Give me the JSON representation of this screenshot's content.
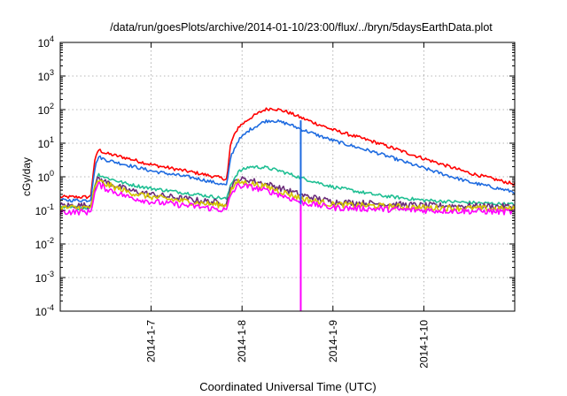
{
  "chart_data": {
    "type": "line",
    "title": "/data/run/goesPlots/archive/2014-01-10/23:00/flux/../bryn/5daysEarthData.plot",
    "xlabel": "Coordinated Universal Time (UTC)",
    "ylabel": "cGy/day",
    "yscale": "log",
    "ylim": [
      0.0001,
      10000
    ],
    "xlim": [
      "2014-01-06 00:00",
      "2014-01-11 00:00"
    ],
    "x_ticks": [
      "2014-1-7",
      "2014-1-8",
      "2014-1-9",
      "2014-1-10"
    ],
    "y_ticks": [
      {
        "base": "10",
        "exp": "-4",
        "value": 0.0001
      },
      {
        "base": "10",
        "exp": "-3",
        "value": 0.001
      },
      {
        "base": "10",
        "exp": "-2",
        "value": 0.01
      },
      {
        "base": "10",
        "exp": "-1",
        "value": 0.1
      },
      {
        "base": "10",
        "exp": "0",
        "value": 1
      },
      {
        "base": "10",
        "exp": "1",
        "value": 10
      },
      {
        "base": "10",
        "exp": "2",
        "value": 100
      },
      {
        "base": "10",
        "exp": "3",
        "value": 1000
      },
      {
        "base": "10",
        "exp": "4",
        "value": 10000
      }
    ],
    "grid": true,
    "legend": "none",
    "series": [
      {
        "color": "#ff0000",
        "points": [
          [
            "2014-01-06 00:00",
            0.25
          ],
          [
            "2014-01-06 08:00",
            0.25
          ],
          [
            "2014-01-06 09:00",
            2.5
          ],
          [
            "2014-01-06 10:00",
            6.5
          ],
          [
            "2014-01-06 12:00",
            5.0
          ],
          [
            "2014-01-06 18:00",
            3.5
          ],
          [
            "2014-01-07 00:00",
            2.3
          ],
          [
            "2014-01-07 12:00",
            1.3
          ],
          [
            "2014-01-07 20:00",
            0.85
          ],
          [
            "2014-01-07 21:00",
            10
          ],
          [
            "2014-01-07 23:00",
            30
          ],
          [
            "2014-01-08 02:00",
            55
          ],
          [
            "2014-01-08 06:00",
            100
          ],
          [
            "2014-01-08 08:00",
            110
          ],
          [
            "2014-01-08 12:00",
            85
          ],
          [
            "2014-01-08 16:00",
            55
          ],
          [
            "2014-01-09 00:00",
            25
          ],
          [
            "2014-01-09 12:00",
            10
          ],
          [
            "2014-01-10 00:00",
            3.5
          ],
          [
            "2014-01-10 12:00",
            1.3
          ],
          [
            "2014-01-11 00:00",
            0.6
          ]
        ]
      },
      {
        "color": "#1e6be0",
        "points": [
          [
            "2014-01-06 00:00",
            0.2
          ],
          [
            "2014-01-06 08:00",
            0.2
          ],
          [
            "2014-01-06 09:00",
            1.5
          ],
          [
            "2014-01-06 10:00",
            4.0
          ],
          [
            "2014-01-06 12:00",
            3.2
          ],
          [
            "2014-01-06 18:00",
            2.2
          ],
          [
            "2014-01-07 00:00",
            1.5
          ],
          [
            "2014-01-07 12:00",
            0.9
          ],
          [
            "2014-01-07 20:00",
            0.55
          ],
          [
            "2014-01-07 21:00",
            4.0
          ],
          [
            "2014-01-07 23:00",
            12
          ],
          [
            "2014-01-08 02:00",
            25
          ],
          [
            "2014-01-08 06:00",
            45
          ],
          [
            "2014-01-08 08:00",
            48
          ],
          [
            "2014-01-08 12:00",
            38
          ],
          [
            "2014-01-08 16:00",
            25
          ],
          [
            "2014-01-09 00:00",
            12
          ],
          [
            "2014-01-09 12:00",
            5.0
          ],
          [
            "2014-01-10 00:00",
            1.8
          ],
          [
            "2014-01-10 12:00",
            0.7
          ],
          [
            "2014-01-11 00:00",
            0.35
          ]
        ]
      },
      {
        "color": "#1fbf93",
        "points": [
          [
            "2014-01-06 00:00",
            0.12
          ],
          [
            "2014-01-06 08:00",
            0.12
          ],
          [
            "2014-01-06 09:00",
            0.5
          ],
          [
            "2014-01-06 10:00",
            1.2
          ],
          [
            "2014-01-06 12:00",
            0.95
          ],
          [
            "2014-01-06 18:00",
            0.6
          ],
          [
            "2014-01-07 00:00",
            0.45
          ],
          [
            "2014-01-07 12:00",
            0.3
          ],
          [
            "2014-01-07 20:00",
            0.22
          ],
          [
            "2014-01-07 21:00",
            0.6
          ],
          [
            "2014-01-07 23:00",
            1.4
          ],
          [
            "2014-01-08 02:00",
            2.0
          ],
          [
            "2014-01-08 06:00",
            1.9
          ],
          [
            "2014-01-08 10:00",
            1.5
          ],
          [
            "2014-01-08 16:00",
            0.9
          ],
          [
            "2014-01-09 00:00",
            0.5
          ],
          [
            "2014-01-09 12:00",
            0.28
          ],
          [
            "2014-01-10 00:00",
            0.2
          ],
          [
            "2014-01-10 12:00",
            0.17
          ],
          [
            "2014-01-11 00:00",
            0.15
          ]
        ]
      },
      {
        "color": "#6b2d7a",
        "points": [
          [
            "2014-01-06 00:00",
            0.14
          ],
          [
            "2014-01-06 08:00",
            0.14
          ],
          [
            "2014-01-06 09:00",
            0.45
          ],
          [
            "2014-01-06 10:00",
            0.9
          ],
          [
            "2014-01-06 12:00",
            0.7
          ],
          [
            "2014-01-06 18:00",
            0.4
          ],
          [
            "2014-01-07 00:00",
            0.3
          ],
          [
            "2014-01-07 12:00",
            0.2
          ],
          [
            "2014-01-07 20:00",
            0.16
          ],
          [
            "2014-01-07 21:00",
            0.5
          ],
          [
            "2014-01-07 23:00",
            0.85
          ],
          [
            "2014-01-08 02:00",
            0.8
          ],
          [
            "2014-01-08 08:00",
            0.55
          ],
          [
            "2014-01-08 16:00",
            0.28
          ],
          [
            "2014-01-09 00:00",
            0.18
          ],
          [
            "2014-01-10 00:00",
            0.14
          ],
          [
            "2014-01-11 00:00",
            0.13
          ]
        ]
      },
      {
        "color": "#d4c400",
        "points": [
          [
            "2014-01-06 00:00",
            0.12
          ],
          [
            "2014-01-06 08:00",
            0.12
          ],
          [
            "2014-01-06 09:00",
            0.4
          ],
          [
            "2014-01-06 10:00",
            0.75
          ],
          [
            "2014-01-06 12:00",
            0.6
          ],
          [
            "2014-01-06 18:00",
            0.35
          ],
          [
            "2014-01-07 00:00",
            0.25
          ],
          [
            "2014-01-07 12:00",
            0.17
          ],
          [
            "2014-01-07 20:00",
            0.14
          ],
          [
            "2014-01-07 21:00",
            0.4
          ],
          [
            "2014-01-07 23:00",
            0.7
          ],
          [
            "2014-01-08 02:00",
            0.65
          ],
          [
            "2014-01-08 08:00",
            0.45
          ],
          [
            "2014-01-08 16:00",
            0.22
          ],
          [
            "2014-01-09 00:00",
            0.15
          ],
          [
            "2014-01-10 00:00",
            0.12
          ],
          [
            "2014-01-11 00:00",
            0.11
          ]
        ]
      },
      {
        "color": "#ff00ff",
        "points": [
          [
            "2014-01-06 00:00",
            0.09
          ],
          [
            "2014-01-06 08:00",
            0.09
          ],
          [
            "2014-01-06 09:00",
            0.3
          ],
          [
            "2014-01-06 10:00",
            0.6
          ],
          [
            "2014-01-06 12:00",
            0.45
          ],
          [
            "2014-01-06 18:00",
            0.25
          ],
          [
            "2014-01-07 00:00",
            0.18
          ],
          [
            "2014-01-07 12:00",
            0.13
          ],
          [
            "2014-01-07 20:00",
            0.1
          ],
          [
            "2014-01-07 21:00",
            0.3
          ],
          [
            "2014-01-07 23:00",
            0.55
          ],
          [
            "2014-01-08 02:00",
            0.5
          ],
          [
            "2014-01-08 08:00",
            0.35
          ],
          [
            "2014-01-08 16:00",
            0.17
          ],
          [
            "2014-01-09 00:00",
            0.12
          ],
          [
            "2014-01-10 00:00",
            0.1
          ],
          [
            "2014-01-11 00:00",
            0.09
          ]
        ]
      }
    ],
    "vertical_lines": [
      {
        "color": "#ff00ff",
        "x": "2014-01-08 15:30",
        "from": 0.0001,
        "to": 0.15
      },
      {
        "color": "#1e6be0",
        "x": "2014-01-08 15:30",
        "from": 0.15,
        "to": 48
      }
    ]
  }
}
